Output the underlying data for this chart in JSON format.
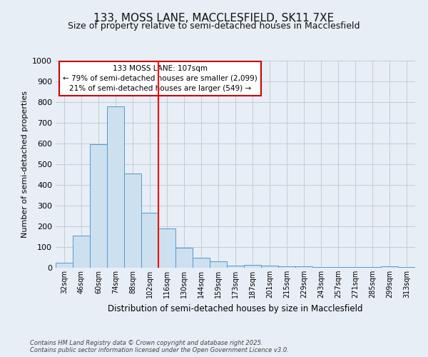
{
  "title1": "133, MOSS LANE, MACCLESFIELD, SK11 7XE",
  "title2": "Size of property relative to semi-detached houses in Macclesfield",
  "xlabel": "Distribution of semi-detached houses by size in Macclesfield",
  "ylabel": "Number of semi-detached properties",
  "footnote": "Contains HM Land Registry data © Crown copyright and database right 2025.\nContains public sector information licensed under the Open Government Licence v3.0.",
  "bar_labels": [
    "32sqm",
    "46sqm",
    "60sqm",
    "74sqm",
    "88sqm",
    "102sqm",
    "116sqm",
    "130sqm",
    "144sqm",
    "159sqm",
    "173sqm",
    "187sqm",
    "201sqm",
    "215sqm",
    "229sqm",
    "243sqm",
    "257sqm",
    "271sqm",
    "285sqm",
    "299sqm",
    "313sqm"
  ],
  "bar_values": [
    25,
    155,
    595,
    780,
    455,
    265,
    190,
    95,
    50,
    30,
    12,
    15,
    12,
    8,
    8,
    4,
    3,
    4,
    2,
    8,
    2
  ],
  "bar_color": "#cce0f0",
  "bar_edge_color": "#5599cc",
  "marker_value_index": 5.5,
  "marker_color": "#ff0000",
  "annotation_line1": "133 MOSS LANE: 107sqm",
  "annotation_line2": "← 79% of semi-detached houses are smaller (2,099)",
  "annotation_line3": "21% of semi-detached houses are larger (549) →",
  "annotation_box_color": "#ffffff",
  "annotation_box_edge": "#cc0000",
  "ylim": [
    0,
    1000
  ],
  "yticks": [
    0,
    100,
    200,
    300,
    400,
    500,
    600,
    700,
    800,
    900,
    1000
  ],
  "background_color": "#e8eef5",
  "plot_background": "#e8eef5",
  "grid_color": "#c0ccd8",
  "title1_fontsize": 11,
  "title2_fontsize": 9
}
